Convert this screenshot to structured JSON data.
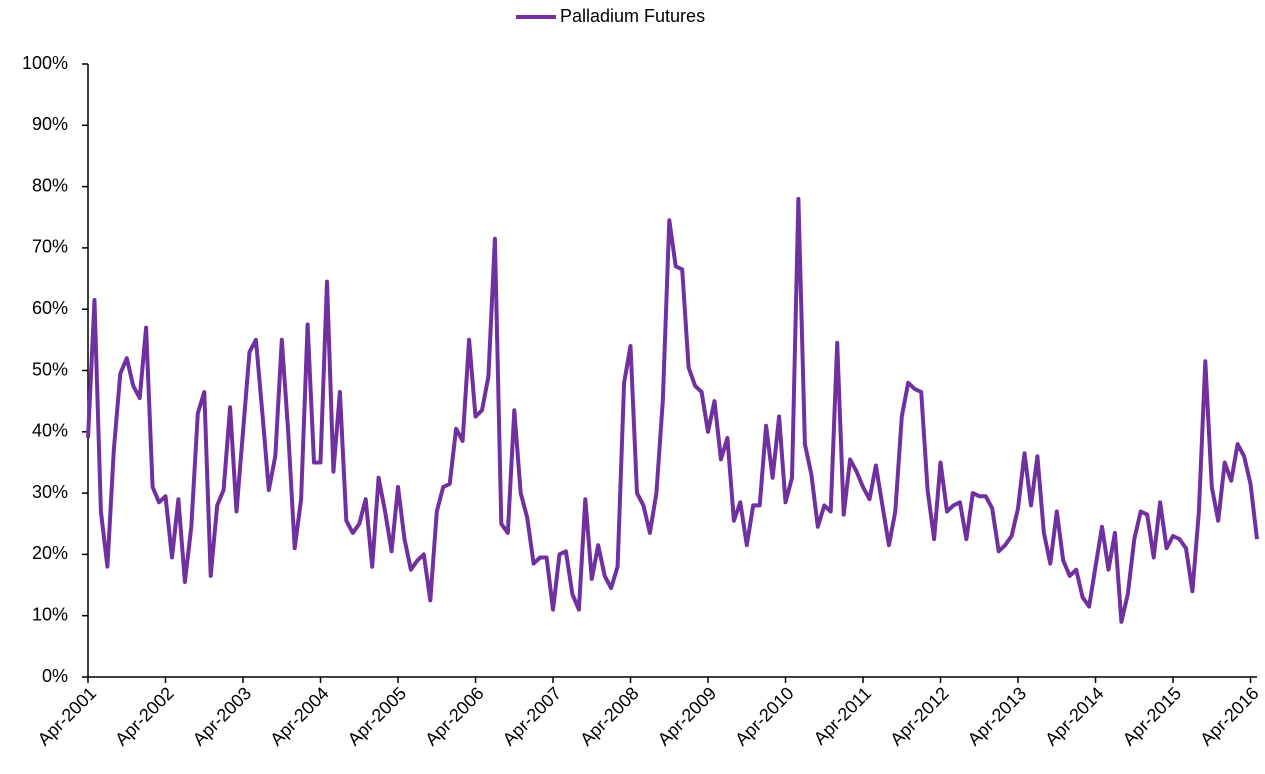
{
  "chart_data": {
    "type": "line",
    "legend": "top",
    "categories": [
      "Apr-2001",
      null,
      null,
      null,
      null,
      null,
      null,
      null,
      null,
      null,
      null,
      null,
      "Apr-2002",
      null,
      null,
      null,
      null,
      null,
      null,
      null,
      null,
      null,
      null,
      null,
      "Apr-2003",
      null,
      null,
      null,
      null,
      null,
      null,
      null,
      null,
      null,
      null,
      null,
      "Apr-2004",
      null,
      null,
      null,
      null,
      null,
      null,
      null,
      null,
      null,
      null,
      null,
      "Apr-2005",
      null,
      null,
      null,
      null,
      null,
      null,
      null,
      null,
      null,
      null,
      null,
      "Apr-2006",
      null,
      null,
      null,
      null,
      null,
      null,
      null,
      null,
      null,
      null,
      null,
      "Apr-2007",
      null,
      null,
      null,
      null,
      null,
      null,
      null,
      null,
      null,
      null,
      null,
      "Apr-2008",
      null,
      null,
      null,
      null,
      null,
      null,
      null,
      null,
      null,
      null,
      null,
      "Apr-2009",
      null,
      null,
      null,
      null,
      null,
      null,
      null,
      null,
      null,
      null,
      null,
      "Apr-2010",
      null,
      null,
      null,
      null,
      null,
      null,
      null,
      null,
      null,
      null,
      null,
      "Apr-2011",
      null,
      null,
      null,
      null,
      null,
      null,
      null,
      null,
      null,
      null,
      null,
      "Apr-2012",
      null,
      null,
      null,
      null,
      null,
      null,
      null,
      null,
      null,
      null,
      null,
      "Apr-2013",
      null,
      null,
      null,
      null,
      null,
      null,
      null,
      null,
      null,
      null,
      null,
      "Apr-2014",
      null,
      null,
      null,
      null,
      null,
      null,
      null,
      null,
      null,
      null,
      null,
      "Apr-2015",
      null,
      null,
      null,
      null,
      null,
      null,
      null,
      null,
      null,
      null,
      null,
      "Apr-2016",
      null
    ],
    "series": [
      {
        "name": "Palladium Futures",
        "color": "#7030a0",
        "values": [
          39,
          61.5,
          27,
          18,
          37,
          49.5,
          52,
          47.5,
          45.5,
          57,
          31,
          28.5,
          29.5,
          19.5,
          29,
          15.5,
          24.5,
          43,
          46.5,
          16.5,
          28,
          30.5,
          44,
          27,
          40,
          53,
          55,
          43,
          30.5,
          36,
          55,
          40,
          21,
          29,
          57.5,
          35,
          35,
          64.5,
          33.5,
          46.5,
          25.5,
          23.5,
          25,
          29,
          18,
          32.5,
          27,
          20.5,
          31,
          22.5,
          17.5,
          19,
          20,
          12.5,
          27,
          31,
          31.5,
          40.5,
          38.5,
          55,
          42.5,
          43.5,
          49,
          71.5,
          25,
          23.5,
          43.5,
          30,
          26,
          18.5,
          19.5,
          19.5,
          11,
          20,
          20.5,
          13.5,
          11,
          29,
          16,
          21.5,
          16.5,
          14.5,
          18,
          48,
          54,
          30,
          28,
          23.5,
          30,
          45,
          74.5,
          67,
          66.5,
          50.5,
          47.5,
          46.5,
          40,
          45,
          35.5,
          39,
          25.5,
          28.5,
          21.5,
          28,
          28,
          41,
          32.5,
          42.5,
          28.5,
          32.5,
          78,
          38,
          33,
          24.5,
          28,
          27,
          54.5,
          26.5,
          35.5,
          33.5,
          31,
          29,
          34.5,
          28,
          21.5,
          27,
          42.5,
          48,
          47,
          46.5,
          30.5,
          22.5,
          35,
          27,
          28,
          28.5,
          22.5,
          30,
          29.5,
          29.5,
          27.5,
          20.5,
          21.5,
          23,
          27.5,
          36.5,
          28,
          36,
          23.5,
          18.5,
          27,
          19,
          16.5,
          17.5,
          13,
          11.5,
          18,
          24.5,
          17.5,
          23.5,
          9,
          13.5,
          22.5,
          27,
          26.5,
          19.5,
          28.5,
          21,
          23,
          22.5,
          21,
          14,
          27,
          51.5,
          31,
          25.5,
          35,
          32,
          38,
          36,
          31.5,
          22.5
        ]
      }
    ],
    "ylim": [
      0,
      100
    ],
    "yticks": [
      {
        "value": 0,
        "label": "0%"
      },
      {
        "value": 10,
        "label": "10%"
      },
      {
        "value": 20,
        "label": "20%"
      },
      {
        "value": 30,
        "label": "30%"
      },
      {
        "value": 40,
        "label": "40%"
      },
      {
        "value": 50,
        "label": "50%"
      },
      {
        "value": 60,
        "label": "60%"
      },
      {
        "value": 70,
        "label": "70%"
      },
      {
        "value": 80,
        "label": "80%"
      },
      {
        "value": 90,
        "label": "90%"
      },
      {
        "value": 100,
        "label": "100%"
      }
    ],
    "grid": false
  }
}
